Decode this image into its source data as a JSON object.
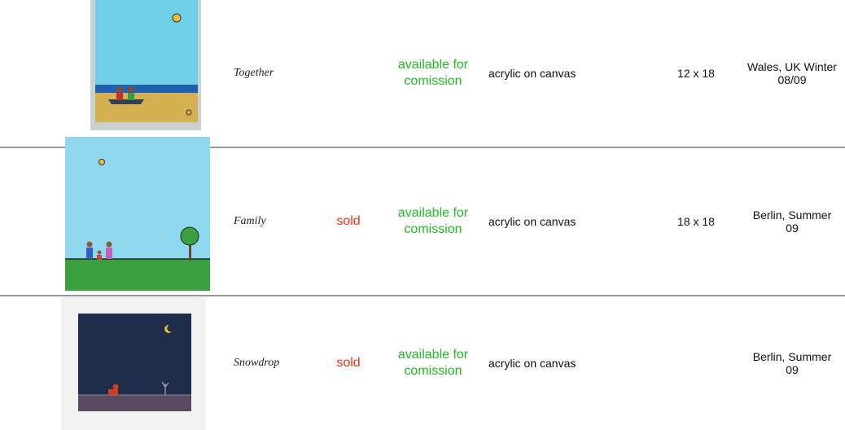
{
  "rows": [
    {
      "title": "Together",
      "availability": "available for comission",
      "medium": "acrylic on canvas",
      "size": "12 x 18",
      "location": "Wales, UK Winter 08/09"
    },
    {
      "title": "Family",
      "status": "sold",
      "availability": "available for comission",
      "medium": "acrylic on canvas",
      "size": "18 x 18",
      "location": "Berlin, Summer 09"
    },
    {
      "title": "Snowdrop",
      "status": "sold",
      "availability": "available for comission",
      "medium": "acrylic on canvas",
      "location": "Berlin, Summer 09"
    }
  ]
}
